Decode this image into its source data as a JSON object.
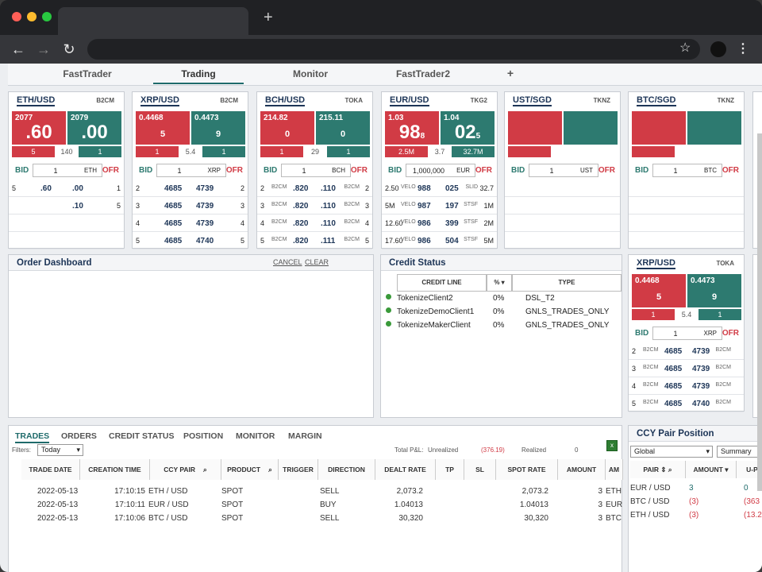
{
  "browser": {
    "new_tab": "+",
    "back": "←",
    "forward": "→",
    "reload": "↻",
    "star": "☆",
    "menu": "⋮"
  },
  "app_tabs": [
    "FastTrader",
    "Trading",
    "Monitor",
    "FastTrader2",
    "+"
  ],
  "tiles": [
    {
      "pair": "ETH/USD",
      "src": "B2CM",
      "bid_top": "2077",
      "bid_big": ".60",
      "ofr_top": "2079",
      "ofr_big": ".00",
      "bid_vol": "5",
      "mid": "140",
      "ofr_vol": "1",
      "qty": "1",
      "ccy": "ETH",
      "rows": [
        [
          "5",
          "",
          ".60",
          ".00",
          "",
          "1"
        ],
        [
          "",
          "",
          "",
          ".10",
          "",
          "5"
        ]
      ]
    },
    {
      "pair": "XRP/USD",
      "src": "B2CM",
      "bid_top": "0.4468",
      "bid_big": "5",
      "ofr_top": "0.4473",
      "ofr_big": "9",
      "bid_vol": "1",
      "mid": "5.4",
      "ofr_vol": "1",
      "qty": "1",
      "ccy": "XRP",
      "rows": [
        [
          "2",
          "",
          "4685",
          "4739",
          "",
          "2"
        ],
        [
          "3",
          "",
          "4685",
          "4739",
          "",
          "3"
        ],
        [
          "4",
          "",
          "4685",
          "4739",
          "",
          "4"
        ],
        [
          "5",
          "",
          "4685",
          "4740",
          "",
          "5"
        ]
      ]
    },
    {
      "pair": "BCH/USD",
      "src": "TOKA",
      "bid_top": "214.82",
      "bid_big": "0",
      "ofr_top": "215.11",
      "ofr_big": "0",
      "bid_vol": "1",
      "mid": "29",
      "ofr_vol": "1",
      "qty": "1",
      "ccy": "BCH",
      "rows": [
        [
          "2",
          "B2CM",
          ".820",
          ".110",
          "B2CM",
          "2"
        ],
        [
          "3",
          "B2CM",
          ".820",
          ".110",
          "B2CM",
          "3"
        ],
        [
          "4",
          "B2CM",
          ".820",
          ".110",
          "B2CM",
          "4"
        ],
        [
          "5",
          "B2CM",
          ".820",
          ".111",
          "B2CM",
          "5"
        ]
      ]
    },
    {
      "pair": "EUR/USD",
      "src": "TKG2",
      "bid_top": "1.03",
      "bid_big": "98",
      "bid_sub": "8",
      "ofr_top": "1.04",
      "ofr_big": "02",
      "ofr_sub": "5",
      "bid_vol": "2.5M",
      "mid": "3.7",
      "ofr_vol": "32.7M",
      "qty": "1,000,000",
      "ccy": "EUR",
      "rows": [
        [
          "2.50",
          "VELO",
          "988",
          "025",
          "SLID",
          "32.7"
        ],
        [
          "5M",
          "VELO",
          "987",
          "197",
          "STSF",
          "1M"
        ],
        [
          "12.60",
          "VELO",
          "986",
          "399",
          "STSF",
          "2M"
        ],
        [
          "17.60",
          "VELO",
          "986",
          "504",
          "STSF",
          "5M"
        ]
      ]
    },
    {
      "pair": "UST/SGD",
      "src": "TKNZ",
      "qty": "1",
      "ccy": "UST",
      "rows": []
    },
    {
      "pair": "BTC/SGD",
      "src": "TKNZ",
      "qty": "1",
      "ccy": "BTC",
      "rows": []
    }
  ],
  "labels": {
    "bid": "BID",
    "ofr": "OFR"
  },
  "order_dashboard": {
    "title": "Order Dashboard",
    "cancel": "CANCEL",
    "clear": "CLEAR"
  },
  "credit_status": {
    "title": "Credit Status",
    "headers": [
      "CREDIT LINE",
      "%",
      "TYPE"
    ],
    "rows": [
      [
        "TokenizeClient2",
        "0%",
        "DSL_T2"
      ],
      [
        "TokenizeDemoClient1",
        "0%",
        "GNLS_TRADES_ONLY"
      ],
      [
        "TokenizeMakerClient",
        "0%",
        "GNLS_TRADES_ONLY"
      ]
    ]
  },
  "xrp_tile": {
    "pair": "XRP/USD",
    "src": "TOKA",
    "bid_top": "0.4468",
    "bid_big": "5",
    "ofr_top": "0.4473",
    "ofr_big": "9",
    "bid_vol": "1",
    "mid": "5.4",
    "ofr_vol": "1",
    "qty": "1",
    "ccy": "XRP",
    "rows": [
      [
        "2",
        "B2CM",
        "4685",
        "4739",
        "B2CM"
      ],
      [
        "3",
        "B2CM",
        "4685",
        "4739",
        "B2CM"
      ],
      [
        "4",
        "B2CM",
        "4685",
        "4739",
        "B2CM"
      ],
      [
        "5",
        "B2CM",
        "4685",
        "4740",
        "B2CM"
      ]
    ]
  },
  "bottom": {
    "tabs": [
      "TRADES",
      "ORDERS",
      "CREDIT STATUS",
      "POSITION",
      "MONITOR",
      "MARGIN"
    ],
    "filters_label": "Filters:",
    "filter_value": "Today",
    "total_pnl": "Total P&L:",
    "unrealized": "Unrealized",
    "unrealized_val": "(376.19)",
    "realized": "Realized",
    "realized_val": "0",
    "headers": [
      "TRADE DATE",
      "CREATION TIME",
      "CCY PAIR",
      "PRODUCT",
      "TRIGGER",
      "DIRECTION",
      "DEALT RATE",
      "TP",
      "SL",
      "SPOT RATE",
      "AMOUNT",
      "AM"
    ],
    "rows": [
      [
        "2022-05-13",
        "17:10:15",
        "ETH / USD",
        "SPOT",
        "",
        "SELL",
        "2,073.2",
        "",
        "",
        "2,073.2",
        "3",
        "ETH"
      ],
      [
        "2022-05-13",
        "17:10:11",
        "EUR / USD",
        "SPOT",
        "",
        "BUY",
        "1.04013",
        "",
        "",
        "1.04013",
        "3",
        "EUR"
      ],
      [
        "2022-05-13",
        "17:10:06",
        "BTC / USD",
        "SPOT",
        "",
        "SELL",
        "30,320",
        "",
        "",
        "30,320",
        "3",
        "BTC"
      ]
    ]
  },
  "ccy_position": {
    "title": "CCY Pair Position",
    "select1": "Global",
    "select2": "Summary",
    "headers": [
      "PAIR",
      "AMOUNT",
      "U-P"
    ],
    "rows": [
      [
        "EUR / USD",
        "3",
        "0"
      ],
      [
        "BTC / USD",
        "(3)",
        "(363"
      ],
      [
        "ETH / USD",
        "(3)",
        "(13.2"
      ]
    ]
  },
  "colors": {
    "bid": "#d13b45",
    "ofr": "#2d7a70",
    "navy": "#1d3557"
  }
}
